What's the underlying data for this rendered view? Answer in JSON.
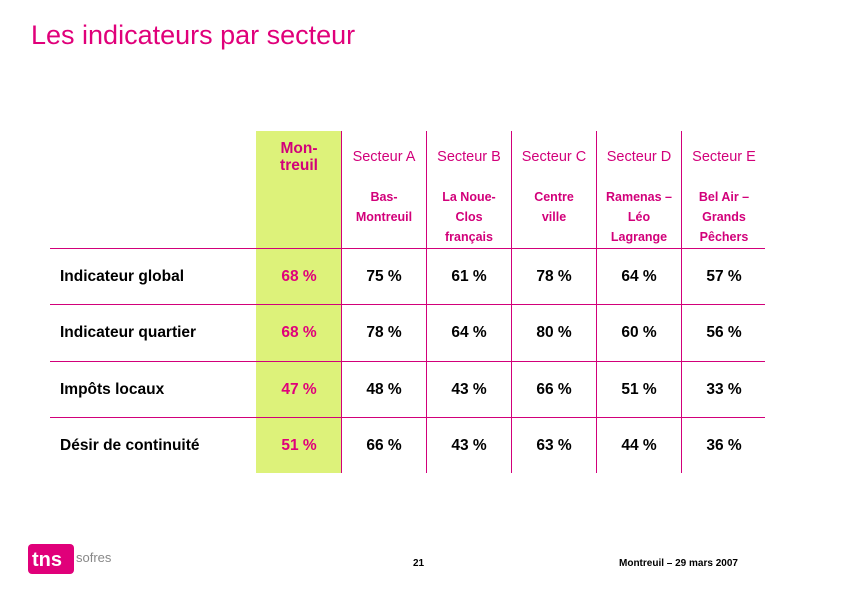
{
  "title": "Les indicateurs par secteur",
  "columns": [
    {
      "head": "Mon-\ntreuil",
      "sub": ""
    },
    {
      "head": "Secteur A",
      "sub": "Bas-\nMontreuil"
    },
    {
      "head": "Secteur B",
      "sub": "La Noue-\nClos\nfrançais"
    },
    {
      "head": "Secteur C",
      "sub": "Centre\nville"
    },
    {
      "head": "Secteur D",
      "sub": "Ramenas –\nLéo\nLagrange"
    },
    {
      "head": "Secteur E",
      "sub": "Bel Air –\nGrands\nPêchers"
    }
  ],
  "rows": [
    {
      "label": "Indicateur global",
      "values": [
        "68 %",
        "75 %",
        "61 %",
        "78 %",
        "64 %",
        "57 %"
      ]
    },
    {
      "label": "Indicateur quartier",
      "values": [
        "68 %",
        "78 %",
        "64 %",
        "80 %",
        "60 %",
        "56 %"
      ]
    },
    {
      "label": "Impôts locaux",
      "values": [
        "47 %",
        "48 %",
        "43 %",
        "66 %",
        "51 %",
        "33 %"
      ]
    },
    {
      "label": "Désir de continuité",
      "values": [
        "51 %",
        "66 %",
        "43 %",
        "63 %",
        "44 %",
        "36 %"
      ]
    }
  ],
  "logo": {
    "mark": "tns",
    "name": "sofres"
  },
  "page_number": "21",
  "footer": "Montreuil – 29 mars 2007",
  "colors": {
    "accent": "#e0007a",
    "highlight": "#ddf27a",
    "rule": "#d2007a"
  }
}
